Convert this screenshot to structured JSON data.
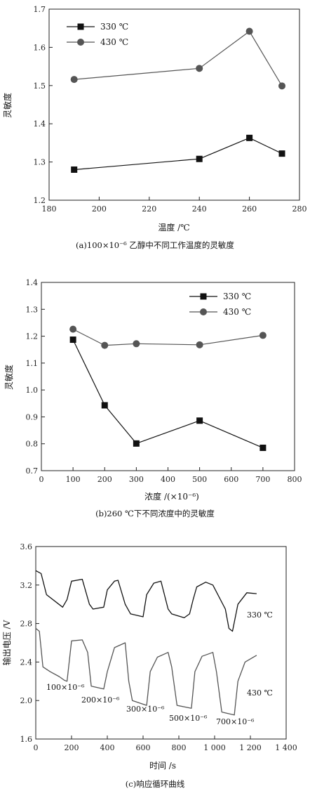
{
  "chart_data": [
    {
      "type": "line",
      "caption": "(a)100×10⁻⁶ 乙醇中不同工作温度的灵敏度",
      "xlabel": "温度 /℃",
      "ylabel": "灵敏度",
      "xlim": [
        180,
        280
      ],
      "ylim": [
        1.2,
        1.7
      ],
      "xticks": [
        "180",
        "200",
        "220",
        "240",
        "260",
        "280"
      ],
      "yticks": [
        "1.2",
        "1.3",
        "1.4",
        "1.5",
        "1.6",
        "1.7"
      ],
      "grid": false,
      "legend": "top-left",
      "series": [
        {
          "name": "330 ℃",
          "marker": "square",
          "color": "#111111",
          "x": [
            190,
            240,
            260,
            273
          ],
          "y": [
            1.28,
            1.308,
            1.363,
            1.322
          ]
        },
        {
          "name": "430 ℃",
          "marker": "circle",
          "color": "#555555",
          "x": [
            190,
            240,
            260,
            273
          ],
          "y": [
            1.516,
            1.545,
            1.642,
            1.499
          ]
        }
      ]
    },
    {
      "type": "line",
      "caption": "(b)260 ℃下不同浓度中的灵敏度",
      "xlabel": "浓度 /(×10⁻⁶)",
      "ylabel": "灵敏度",
      "xlim": [
        0,
        800
      ],
      "ylim": [
        0.7,
        1.4
      ],
      "xticks": [
        "0",
        "100",
        "200",
        "300",
        "400",
        "500",
        "600",
        "700",
        "800"
      ],
      "yticks": [
        "0.7",
        "0.8",
        "0.9",
        "1.0",
        "1.1",
        "1.2",
        "1.3",
        "1.4"
      ],
      "grid": false,
      "legend": "top-right",
      "series": [
        {
          "name": "330 ℃",
          "marker": "square",
          "color": "#111111",
          "x": [
            100,
            200,
            300,
            500,
            700
          ],
          "y": [
            1.187,
            0.943,
            0.801,
            0.886,
            0.785
          ]
        },
        {
          "name": "430 ℃",
          "marker": "circle",
          "color": "#555555",
          "x": [
            100,
            200,
            300,
            500,
            700
          ],
          "y": [
            1.226,
            1.166,
            1.172,
            1.168,
            1.203
          ]
        }
      ]
    },
    {
      "type": "line",
      "caption": "(c)响应循环曲线",
      "xlabel": "时间 /s",
      "ylabel": "输出电压 /V",
      "xlim": [
        0,
        1400
      ],
      "ylim": [
        1.6,
        3.6
      ],
      "xticks": [
        "0",
        "200",
        "400",
        "600",
        "800",
        "1 000",
        "1 200",
        "1 400"
      ],
      "yticks": [
        "1.6",
        "2.0",
        "2.4",
        "2.8",
        "3.2",
        "3.6"
      ],
      "grid": false,
      "series": [
        {
          "name": "330 ℃",
          "color": "#111111",
          "x": [
            0,
            30,
            60,
            150,
            175,
            200,
            260,
            300,
            320,
            380,
            400,
            440,
            460,
            500,
            530,
            600,
            620,
            660,
            700,
            740,
            760,
            830,
            860,
            880,
            900,
            950,
            990,
            1060,
            1080,
            1100,
            1130,
            1180,
            1235
          ],
          "y": [
            3.35,
            3.32,
            3.1,
            2.97,
            3.05,
            3.24,
            3.26,
            3.0,
            2.95,
            2.97,
            3.15,
            3.24,
            3.25,
            3.0,
            2.9,
            2.87,
            3.1,
            3.22,
            3.24,
            2.95,
            2.9,
            2.86,
            2.9,
            3.05,
            3.18,
            3.23,
            3.2,
            2.95,
            2.75,
            2.72,
            3.0,
            3.12,
            3.11
          ]
        },
        {
          "name": "430 ℃",
          "color": "#555555",
          "x": [
            0,
            20,
            40,
            80,
            130,
            160,
            175,
            200,
            260,
            290,
            310,
            380,
            400,
            440,
            500,
            520,
            540,
            620,
            640,
            680,
            740,
            760,
            790,
            870,
            890,
            930,
            990,
            1010,
            1040,
            1110,
            1130,
            1170,
            1235
          ],
          "y": [
            2.75,
            2.72,
            2.35,
            2.3,
            2.25,
            2.21,
            2.2,
            2.62,
            2.63,
            2.5,
            2.15,
            2.12,
            2.3,
            2.55,
            2.6,
            2.2,
            2.0,
            1.95,
            2.3,
            2.45,
            2.5,
            2.35,
            1.95,
            1.92,
            2.3,
            2.46,
            2.5,
            2.3,
            1.88,
            1.85,
            2.2,
            2.4,
            2.47
          ]
        }
      ],
      "annotations": [
        "330 ℃",
        "430 ℃",
        "100×10⁻⁶",
        "200×10⁻⁶",
        "300×10⁻⁶",
        "500×10⁻⁶",
        "700×10⁻⁶"
      ]
    }
  ]
}
